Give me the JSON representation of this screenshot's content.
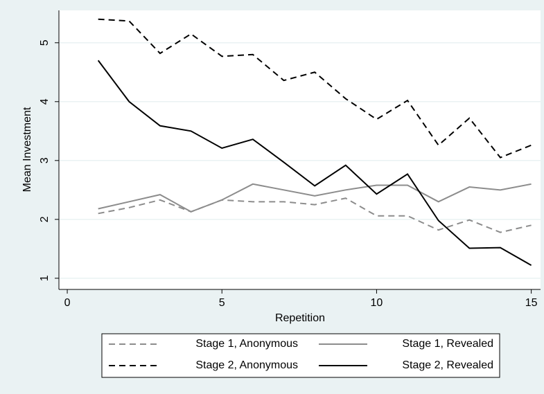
{
  "chart_data": {
    "type": "line",
    "x_label": "Repetition",
    "y_label": "Mean Investment",
    "x": [
      1,
      2,
      3,
      4,
      5,
      6,
      7,
      8,
      9,
      10,
      11,
      12,
      13,
      14,
      15
    ],
    "xlim": [
      -0.27,
      15.3
    ],
    "xticks": [
      0,
      5,
      10,
      15
    ],
    "ylim": [
      0.81,
      5.55
    ],
    "yticks": [
      1,
      2,
      3,
      4,
      5
    ],
    "grid": true,
    "legend_position": "bottom",
    "series": [
      {
        "name": "Stage 1, Anonymous",
        "color": "#8c8c8c",
        "dash": true,
        "values": [
          2.1,
          2.2,
          2.33,
          2.13,
          2.33,
          2.3,
          2.3,
          2.25,
          2.36,
          2.06,
          2.06,
          1.82,
          1.99,
          1.78,
          1.9
        ]
      },
      {
        "name": "Stage 1, Revealed",
        "color": "#8c8c8c",
        "dash": false,
        "values": [
          2.18,
          2.3,
          2.42,
          2.13,
          2.33,
          2.6,
          2.5,
          2.4,
          2.5,
          2.58,
          2.58,
          2.3,
          2.55,
          2.5,
          2.6
        ]
      },
      {
        "name": "Stage 2, Anonymous",
        "color": "#000000",
        "dash": true,
        "values": [
          5.4,
          5.37,
          4.82,
          5.15,
          4.77,
          4.8,
          4.36,
          4.5,
          4.05,
          3.7,
          4.02,
          3.26,
          3.72,
          3.05,
          3.26
        ]
      },
      {
        "name": "Stage 2, Revealed",
        "color": "#000000",
        "dash": false,
        "values": [
          4.7,
          4.0,
          3.59,
          3.5,
          3.21,
          3.36,
          2.97,
          2.57,
          2.92,
          2.43,
          2.77,
          1.98,
          1.51,
          1.52,
          1.22
        ]
      }
    ]
  }
}
